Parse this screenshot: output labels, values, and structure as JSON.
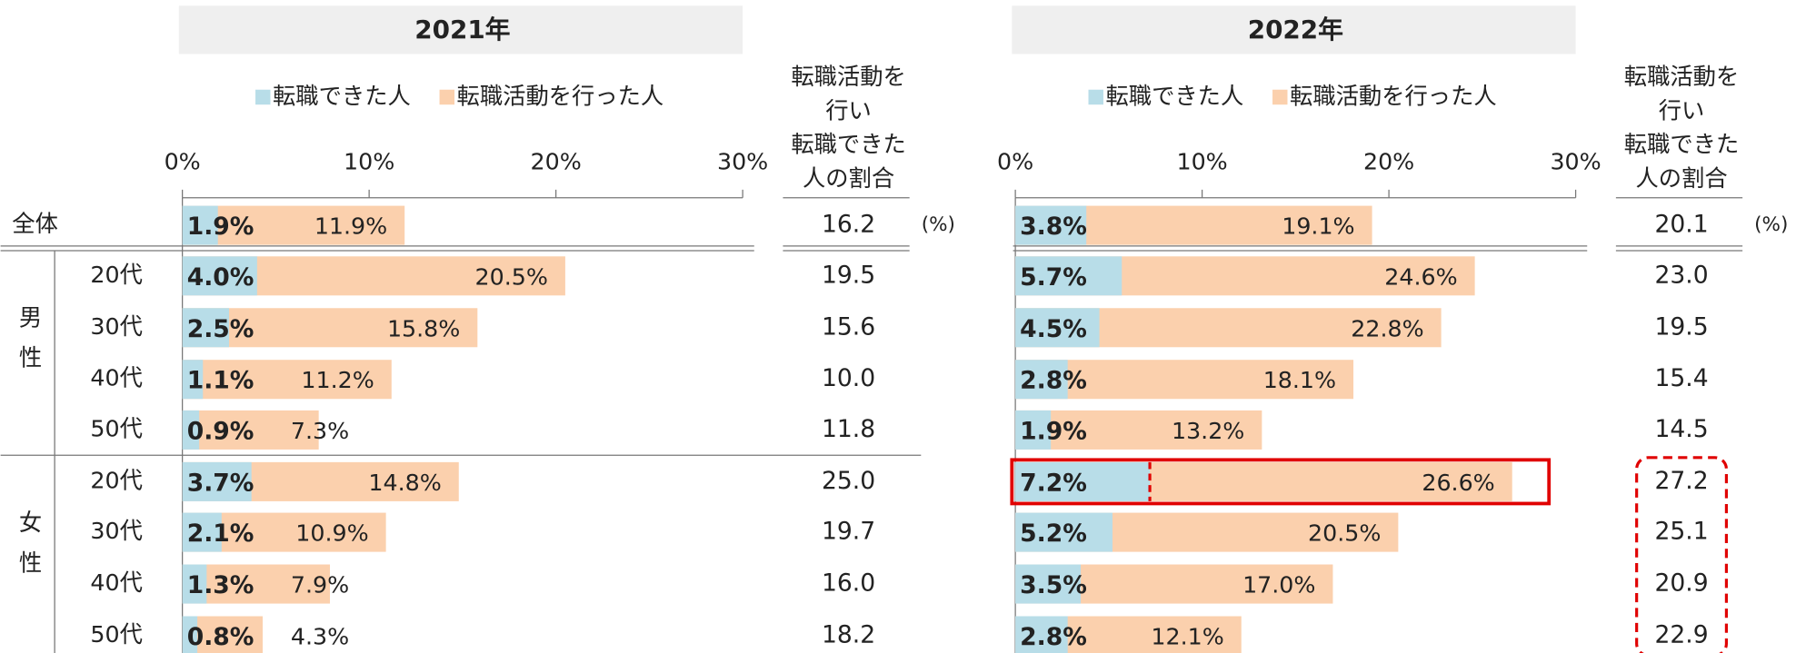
{
  "rows": {
    "total": "全体",
    "groups": [
      {
        "label": [
          "男",
          "性"
        ],
        "ages": [
          "20代",
          "30代",
          "40代",
          "50代"
        ]
      },
      {
        "label": [
          "女",
          "性"
        ],
        "ages": [
          "20代",
          "30代",
          "40代",
          "50代"
        ]
      }
    ]
  },
  "chart_data": [
    {
      "type": "bar",
      "title": "2021年",
      "series": [
        {
          "name": "転職できた人",
          "color": "#b8dde8",
          "values": [
            1.9,
            4.0,
            2.5,
            1.1,
            0.9,
            3.7,
            2.1,
            1.3,
            0.8
          ],
          "value_labels": [
            "1.9%",
            "4.0%",
            "2.5%",
            "1.1%",
            "0.9%",
            "3.7%",
            "2.1%",
            "1.3%",
            "0.8%"
          ]
        },
        {
          "name": "転職活動を行った人",
          "color": "#fbd0ad",
          "values": [
            11.9,
            20.5,
            15.8,
            11.2,
            7.3,
            14.8,
            10.9,
            7.9,
            4.3
          ],
          "value_labels": [
            "11.9%",
            "20.5%",
            "15.8%",
            "11.2%",
            "7.3%",
            "14.8%",
            "10.9%",
            "7.9%",
            "4.3%"
          ]
        }
      ],
      "xlim": [
        0,
        30
      ],
      "xticks": [
        {
          "value": 0,
          "label": "0%"
        },
        {
          "value": 10,
          "label": "10%"
        },
        {
          "value": 20,
          "label": "20%"
        },
        {
          "value": 30,
          "label": "30%"
        }
      ],
      "ratio": {
        "header": [
          "転職活動を",
          "行い",
          "転職できた",
          "人の割合"
        ],
        "unit": "(%)",
        "values": [
          16.2,
          19.5,
          15.6,
          10.0,
          11.8,
          25.0,
          19.7,
          16.0,
          18.2
        ],
        "value_labels": [
          "16.2",
          "19.5",
          "15.6",
          "10.0",
          "11.8",
          "25.0",
          "19.7",
          "16.0",
          "18.2"
        ]
      }
    },
    {
      "type": "bar",
      "title": "2022年",
      "series": [
        {
          "name": "転職できた人",
          "color": "#b8dde8",
          "values": [
            3.8,
            5.7,
            4.5,
            2.8,
            1.9,
            7.2,
            5.2,
            3.5,
            2.8
          ],
          "value_labels": [
            "3.8%",
            "5.7%",
            "4.5%",
            "2.8%",
            "1.9%",
            "7.2%",
            "5.2%",
            "3.5%",
            "2.8%"
          ]
        },
        {
          "name": "転職活動を行った人",
          "color": "#fbd0ad",
          "values": [
            19.1,
            24.6,
            22.8,
            18.1,
            13.2,
            26.6,
            20.5,
            17.0,
            12.1
          ],
          "value_labels": [
            "19.1%",
            "24.6%",
            "22.8%",
            "18.1%",
            "13.2%",
            "26.6%",
            "20.5%",
            "17.0%",
            "12.1%"
          ]
        }
      ],
      "xlim": [
        0,
        30
      ],
      "xticks": [
        {
          "value": 0,
          "label": "0%"
        },
        {
          "value": 10,
          "label": "10%"
        },
        {
          "value": 20,
          "label": "20%"
        },
        {
          "value": 30,
          "label": "30%"
        }
      ],
      "ratio": {
        "header": [
          "転職活動を",
          "行い",
          "転職できた",
          "人の割合"
        ],
        "unit": "(%)",
        "values": [
          20.1,
          23.0,
          19.5,
          15.4,
          14.5,
          27.2,
          25.1,
          20.9,
          22.9
        ],
        "value_labels": [
          "20.1",
          "23.0",
          "19.5",
          "15.4",
          "14.5",
          "27.2",
          "25.1",
          "20.9",
          "22.9"
        ]
      }
    }
  ]
}
